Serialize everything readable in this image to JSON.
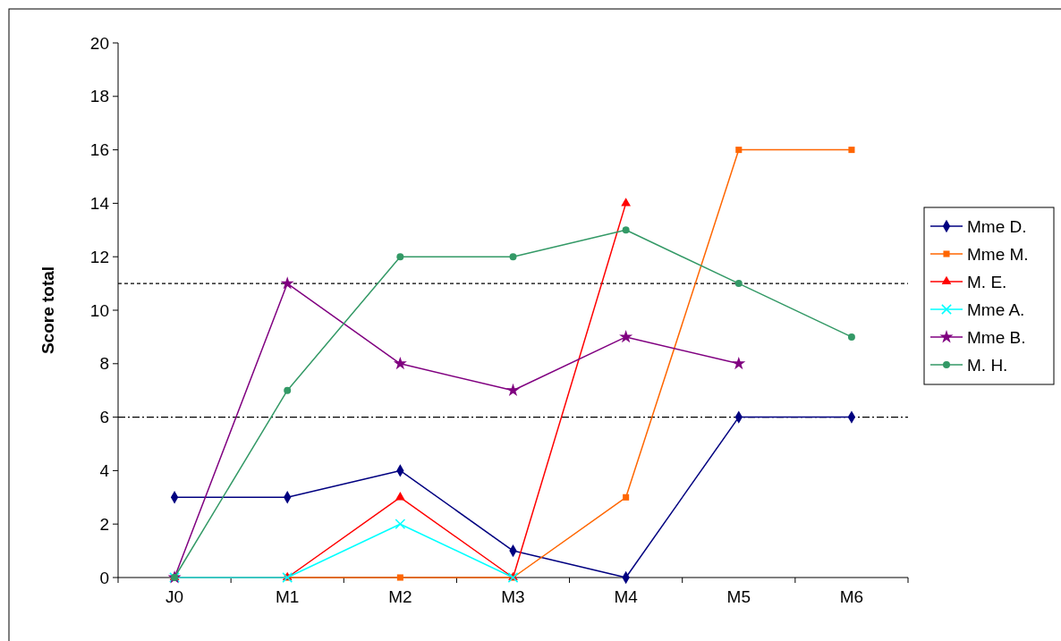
{
  "chart_data": {
    "type": "line",
    "ylabel": "Score total",
    "categories": [
      "J0",
      "M1",
      "M2",
      "M3",
      "M4",
      "M5",
      "M6"
    ],
    "ylim": [
      0,
      20
    ],
    "yticks": [
      0,
      2,
      4,
      6,
      8,
      10,
      12,
      14,
      16,
      18,
      20
    ],
    "grid": false,
    "legend": "right",
    "series": [
      {
        "name": "Mme D.",
        "color": "#000080",
        "marker": "diamond",
        "values": [
          3,
          3,
          4,
          1,
          0,
          6,
          6
        ]
      },
      {
        "name": "Mme M.",
        "color": "#ff6600",
        "marker": "square",
        "values": [
          0,
          0,
          0,
          0,
          3,
          16,
          16
        ]
      },
      {
        "name": "M. E.",
        "color": "#ff0000",
        "marker": "triangle",
        "values": [
          0,
          0,
          3,
          0,
          14,
          null,
          null
        ]
      },
      {
        "name": "Mme A.",
        "color": "#00ffff",
        "marker": "cross",
        "values": [
          0,
          0,
          2,
          0,
          null,
          null,
          null
        ]
      },
      {
        "name": "Mme B.",
        "color": "#800080",
        "marker": "star",
        "values": [
          0,
          11,
          8,
          7,
          9,
          8,
          null
        ]
      },
      {
        "name": "M. H.",
        "color": "#339966",
        "marker": "circle",
        "values": [
          0,
          7,
          12,
          12,
          13,
          11,
          9
        ]
      }
    ],
    "ref_lines": [
      {
        "axis": "y",
        "value": 11,
        "color": "#000000",
        "line_style": "dashed"
      },
      {
        "axis": "y",
        "value": 6,
        "color": "#000000",
        "line_style": "dashdot"
      }
    ]
  }
}
